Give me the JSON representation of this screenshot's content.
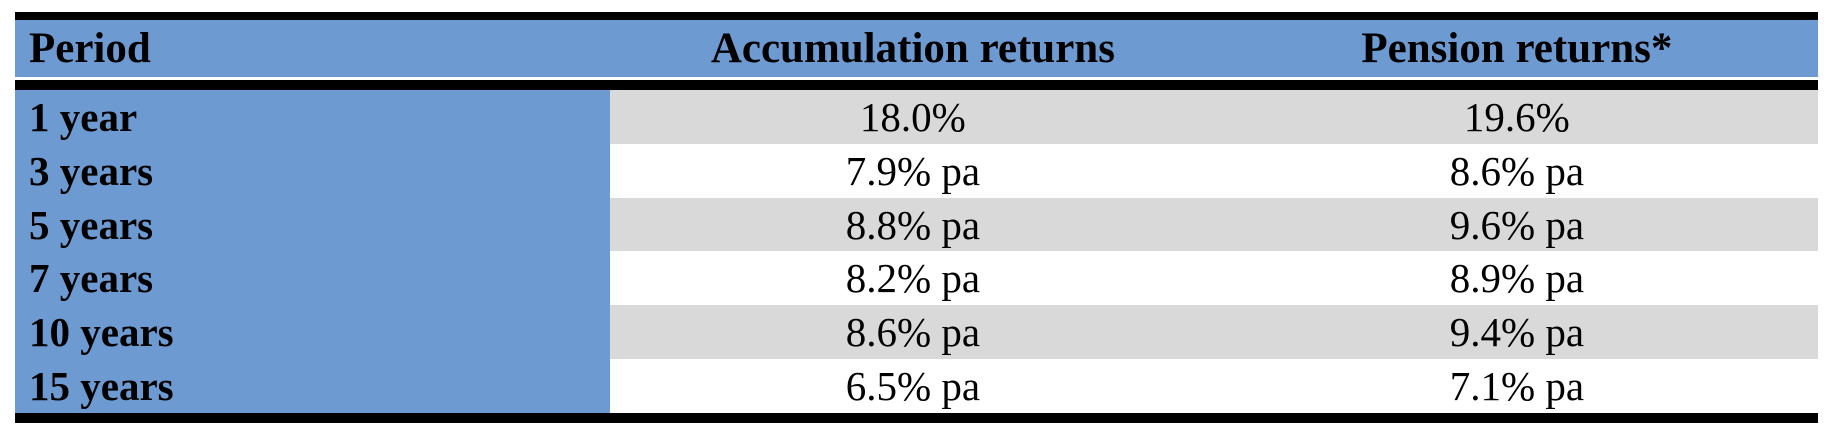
{
  "table": {
    "columns": [
      {
        "label": "Period"
      },
      {
        "label": "Accumulation returns"
      },
      {
        "label": "Pension returns*"
      }
    ],
    "rows": [
      {
        "period": "1 year",
        "accumulation": "18.0%",
        "pension": "19.6%"
      },
      {
        "period": "3 years",
        "accumulation": "7.9% pa",
        "pension": "8.6% pa"
      },
      {
        "period": "5 years",
        "accumulation": "8.8% pa",
        "pension": "9.6% pa"
      },
      {
        "period": "7 years",
        "accumulation": "8.2% pa",
        "pension": "8.9% pa"
      },
      {
        "period": "10 years",
        "accumulation": "8.6% pa",
        "pension": "9.4% pa"
      },
      {
        "period": "15 years",
        "accumulation": "6.5% pa",
        "pension": "7.1% pa"
      }
    ],
    "colors": {
      "header_bg": "#6C9AD1",
      "stripe_bg": "#D9D9D9",
      "border": "#000000",
      "text": "#000000"
    }
  },
  "chart_data": {
    "type": "table",
    "title": "",
    "categories": [
      "1 year",
      "3 years",
      "5 years",
      "7 years",
      "10 years",
      "15 years"
    ],
    "series": [
      {
        "name": "Accumulation returns",
        "values": [
          18.0,
          7.9,
          8.8,
          8.2,
          8.6,
          6.5
        ],
        "unit": "% (pa for multi-year periods)"
      },
      {
        "name": "Pension returns*",
        "values": [
          19.6,
          8.6,
          9.6,
          8.9,
          9.4,
          7.1
        ],
        "unit": "% (pa for multi-year periods)"
      }
    ],
    "column_headers": [
      "Period",
      "Accumulation returns",
      "Pension returns*"
    ],
    "cell_text": [
      [
        "1 year",
        "18.0%",
        "19.6%"
      ],
      [
        "3 years",
        "7.9% pa",
        "8.6% pa"
      ],
      [
        "5 years",
        "8.8% pa",
        "9.6% pa"
      ],
      [
        "7 years",
        "8.2% pa",
        "8.9% pa"
      ],
      [
        "10 years",
        "8.6% pa",
        "9.4% pa"
      ],
      [
        "15 years",
        "6.5% pa",
        "7.1% pa"
      ]
    ]
  }
}
